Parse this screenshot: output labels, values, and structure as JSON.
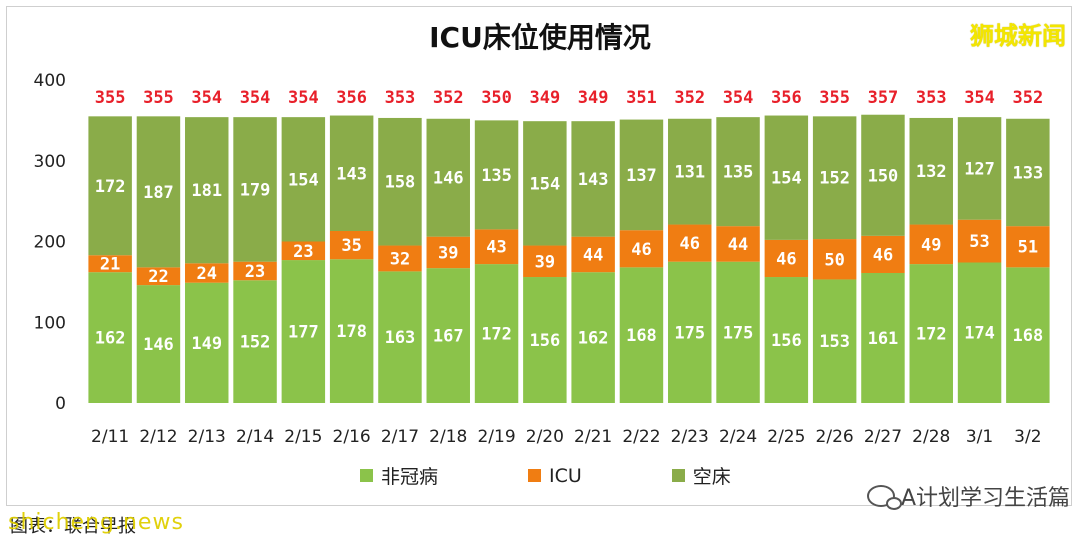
{
  "title": "ICU床位使用情况",
  "brand": "狮城新闻",
  "source_text": "图表：联合早报",
  "watermark": "shicheng.news",
  "wechat_label": "A计划学习生活篇",
  "colors": {
    "non_covid": "#8bc34a",
    "icu": "#f07d12",
    "empty": "#8aac49",
    "total": "#e8202a"
  },
  "chart_data": {
    "type": "bar",
    "stacked": true,
    "categories": [
      "2/11",
      "2/12",
      "2/13",
      "2/14",
      "2/15",
      "2/16",
      "2/17",
      "2/18",
      "2/19",
      "2/20",
      "2/21",
      "2/22",
      "2/23",
      "2/24",
      "2/25",
      "2/26",
      "2/27",
      "2/28",
      "3/1",
      "3/2"
    ],
    "series": [
      {
        "name": "非冠病",
        "color": "#8bc34a",
        "values": [
          162,
          146,
          149,
          152,
          177,
          178,
          163,
          167,
          172,
          156,
          162,
          168,
          175,
          175,
          156,
          153,
          161,
          172,
          174,
          168
        ]
      },
      {
        "name": "ICU",
        "color": "#f07d12",
        "values": [
          21,
          22,
          24,
          23,
          23,
          35,
          32,
          39,
          43,
          39,
          44,
          46,
          46,
          44,
          46,
          50,
          46,
          49,
          53,
          51
        ]
      },
      {
        "name": "空床",
        "color": "#8aac49",
        "values": [
          172,
          187,
          181,
          179,
          154,
          143,
          158,
          146,
          135,
          154,
          143,
          137,
          131,
          135,
          154,
          152,
          150,
          132,
          127,
          133
        ]
      }
    ],
    "totals": [
      355,
      355,
      354,
      354,
      354,
      356,
      353,
      352,
      350,
      349,
      349,
      351,
      352,
      354,
      356,
      355,
      357,
      353,
      354,
      352
    ],
    "yticks": [
      0,
      100,
      200,
      300,
      400
    ],
    "ylim": [
      0,
      400
    ],
    "legend_position": "bottom",
    "grid": false
  }
}
